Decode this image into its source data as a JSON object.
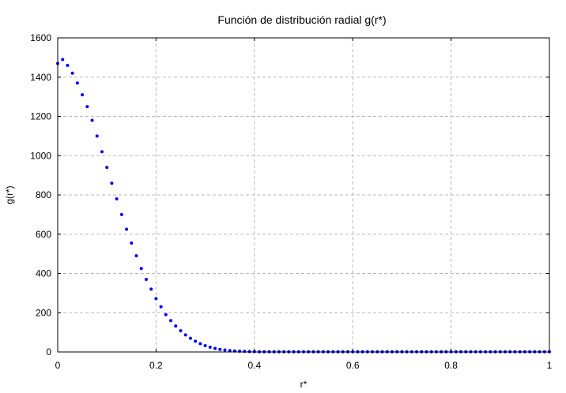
{
  "chart_data": {
    "type": "scatter",
    "title": "Función de distribución radial g(r*)",
    "xlabel": "r*",
    "ylabel": "g(r*)",
    "xlim": [
      0,
      1
    ],
    "ylim": [
      0,
      1600
    ],
    "x_ticks": [
      "0",
      "0.2",
      "0.4",
      "0.6",
      "0.8",
      "1"
    ],
    "y_ticks": [
      "0",
      "200",
      "400",
      "600",
      "800",
      "1000",
      "1200",
      "1400",
      "1600"
    ],
    "grid": true,
    "marker_color": "#0000ff",
    "series": [
      {
        "x": [
          0.0,
          0.01,
          0.02,
          0.03,
          0.04,
          0.05,
          0.06,
          0.07,
          0.08,
          0.09,
          0.1,
          0.11,
          0.12,
          0.13,
          0.14,
          0.15,
          0.16,
          0.17,
          0.18,
          0.19,
          0.2,
          0.21,
          0.22,
          0.23,
          0.24,
          0.25,
          0.26,
          0.27,
          0.28,
          0.29,
          0.3,
          0.31,
          0.32,
          0.33,
          0.34,
          0.35,
          0.36,
          0.37,
          0.38,
          0.39,
          0.4,
          0.41,
          0.42,
          0.43,
          0.44,
          0.45,
          0.46,
          0.47,
          0.48,
          0.49,
          0.5,
          0.51,
          0.52,
          0.53,
          0.54,
          0.55,
          0.56,
          0.57,
          0.58,
          0.59,
          0.6,
          0.61,
          0.62,
          0.63,
          0.64,
          0.65,
          0.66,
          0.67,
          0.68,
          0.69,
          0.7,
          0.71,
          0.72,
          0.73,
          0.74,
          0.75,
          0.76,
          0.77,
          0.78,
          0.79,
          0.8,
          0.81,
          0.82,
          0.83,
          0.84,
          0.85,
          0.86,
          0.87,
          0.88,
          0.89,
          0.9,
          0.91,
          0.92,
          0.93,
          0.94,
          0.95,
          0.96,
          0.97,
          0.98,
          0.99,
          1.0
        ],
        "y": [
          1470,
          1490,
          1460,
          1420,
          1370,
          1310,
          1250,
          1180,
          1100,
          1020,
          940,
          860,
          780,
          700,
          625,
          555,
          490,
          425,
          370,
          320,
          272,
          230,
          190,
          160,
          132,
          108,
          87,
          70,
          55,
          42,
          32,
          24,
          18,
          13,
          10,
          7,
          5,
          4,
          3,
          2,
          1.5,
          1,
          1,
          1,
          1,
          1,
          1,
          1,
          1,
          1,
          1,
          1,
          1,
          1,
          1,
          1,
          1,
          1,
          1,
          1,
          1,
          1,
          1,
          1,
          1,
          1,
          1,
          1,
          1,
          1,
          1,
          1,
          1,
          1,
          1,
          1,
          1,
          1,
          1,
          1,
          1,
          1,
          1,
          1,
          1,
          1,
          1,
          1,
          1,
          1,
          1,
          1,
          1,
          1,
          1,
          1,
          1,
          1,
          1,
          1,
          1
        ]
      }
    ]
  }
}
